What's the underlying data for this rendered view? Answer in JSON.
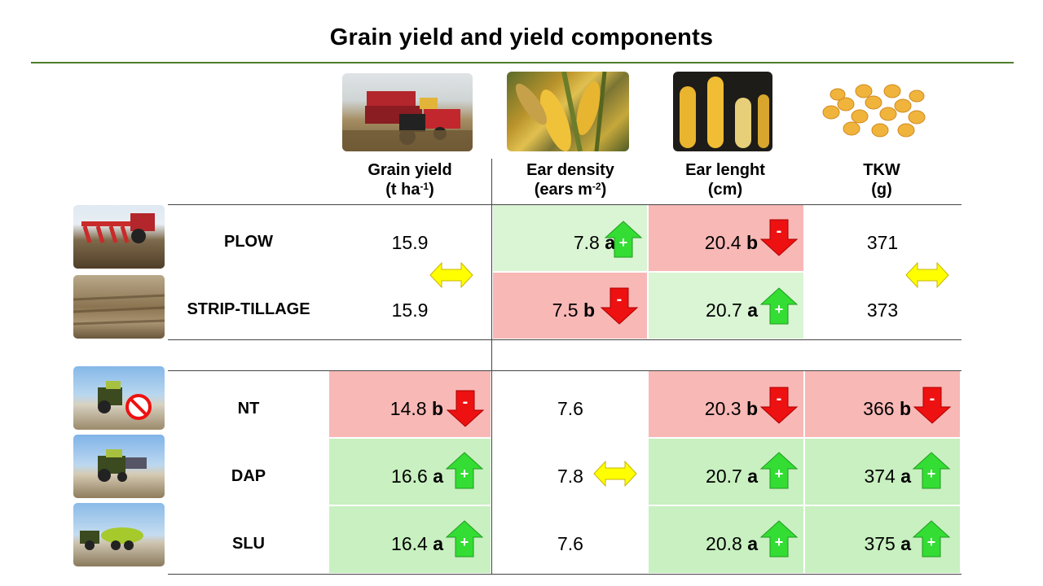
{
  "title": "Grain yield and yield components",
  "columns": [
    {
      "line1": "Grain yield",
      "line2": "(t ha",
      "sup": "-1",
      "close": ")"
    },
    {
      "line1": "Ear density",
      "line2": "(ears m",
      "sup": "-2",
      "close": ")"
    },
    {
      "line1": "Ear lenght",
      "line2": "(cm)",
      "sup": "",
      "close": ""
    },
    {
      "line1": "TKW",
      "line2": "(g)",
      "sup": "",
      "close": ""
    }
  ],
  "tillage_rows": [
    {
      "label": "PLOW",
      "yield": "15.9",
      "density": "7.8",
      "density_letter": "a",
      "length": "20.4",
      "length_letter": "b",
      "tkw": "371"
    },
    {
      "label": "STRIP-TILLAGE",
      "yield": "15.9",
      "density": "7.5",
      "density_letter": "b",
      "length": "20.7",
      "length_letter": "a",
      "tkw": "373"
    }
  ],
  "fert_rows": [
    {
      "label": "NT",
      "yield": "14.8",
      "yield_letter": "b",
      "density": "7.6",
      "length": "20.3",
      "length_letter": "b",
      "tkw": "366",
      "tkw_letter": "b"
    },
    {
      "label": "DAP",
      "yield": "16.6",
      "yield_letter": "a",
      "density": "7.8",
      "length": "20.7",
      "length_letter": "a",
      "tkw": "374",
      "tkw_letter": "a"
    },
    {
      "label": "SLU",
      "yield": "16.4",
      "yield_letter": "a",
      "density": "7.6",
      "length": "20.8",
      "length_letter": "a",
      "tkw": "375",
      "tkw_letter": "a"
    }
  ],
  "signs": {
    "plus": "+",
    "minus": "-"
  },
  "colors": {
    "increase_fill": "#d9f5d3",
    "decrease_fill": "#f8b8b6",
    "up_arrow": "#33dd33",
    "down_arrow": "#ee1111",
    "equal_arrow": "#ffff00",
    "rule": "#4f7d2b"
  },
  "icons": {
    "harvest": "combine-harvester-photo",
    "ears": "corn-ears-photo",
    "cobs": "corn-cobs-photo",
    "kernels": "corn-kernels-photo",
    "plow": "plow-tractor-photo",
    "strip": "strip-tilled-field-photo",
    "nt": "no-tillage-tractor-photo",
    "dap": "dap-tractor-photo",
    "slu": "slurry-tanker-photo"
  }
}
